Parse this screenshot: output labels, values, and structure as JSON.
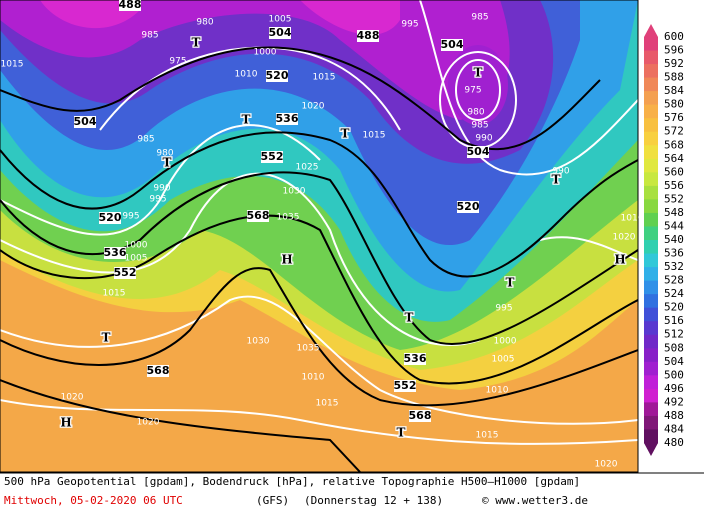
{
  "footer": {
    "line1": "500 hPa Geopotential [gpdam], Bodendruck [hPa], relative Topographie H500—H1000 [gpdam]",
    "date": "Mittwoch, 05-02-2020  06 UTC",
    "model": "(GFS)",
    "run": "(Donnerstag 12 + 138)",
    "credit": "© www.wetter3.de"
  },
  "legend": {
    "levels": [
      600,
      596,
      592,
      588,
      584,
      580,
      576,
      572,
      568,
      564,
      560,
      556,
      552,
      548,
      544,
      540,
      536,
      532,
      528,
      524,
      520,
      516,
      512,
      508,
      504,
      500,
      496,
      492,
      488,
      484,
      480
    ],
    "colors": [
      "#e0407a",
      "#e85a6a",
      "#ec7060",
      "#f08858",
      "#f4a050",
      "#f8b048",
      "#f8c040",
      "#f8d040",
      "#f0e040",
      "#e0e840",
      "#c8e840",
      "#a8e040",
      "#88d840",
      "#60d050",
      "#40d080",
      "#30d0b0",
      "#30c8d8",
      "#30b0e8",
      "#3090e8",
      "#3070e0",
      "#4050d8",
      "#5838d0",
      "#7028c8",
      "#8820c8",
      "#a020d0",
      "#c020d8",
      "#d020d0",
      "#a01898",
      "#801878",
      "#601060"
    ]
  },
  "map_labels": {
    "geopotential": [
      488,
      504,
      488,
      504,
      520,
      504,
      536,
      552,
      504,
      520,
      568,
      520,
      536,
      552,
      568,
      536,
      552,
      568
    ],
    "pressure": [
      980,
      985,
      1005,
      995,
      985,
      975,
      1000,
      1010,
      1015,
      1015,
      975,
      980,
      985,
      990,
      1020,
      1015,
      1025,
      1030,
      1035,
      985,
      980,
      990,
      995,
      995,
      1000,
      1005,
      1015,
      1030,
      1035,
      1010,
      1015,
      1020,
      1020,
      1015,
      1020,
      1020,
      990,
      995,
      1000,
      1005,
      1010,
      1010
    ],
    "symbols": [
      "T",
      "T",
      "T",
      "T",
      "T",
      "T",
      "T",
      "T",
      "T",
      "T",
      "H",
      "H",
      "H"
    ]
  }
}
